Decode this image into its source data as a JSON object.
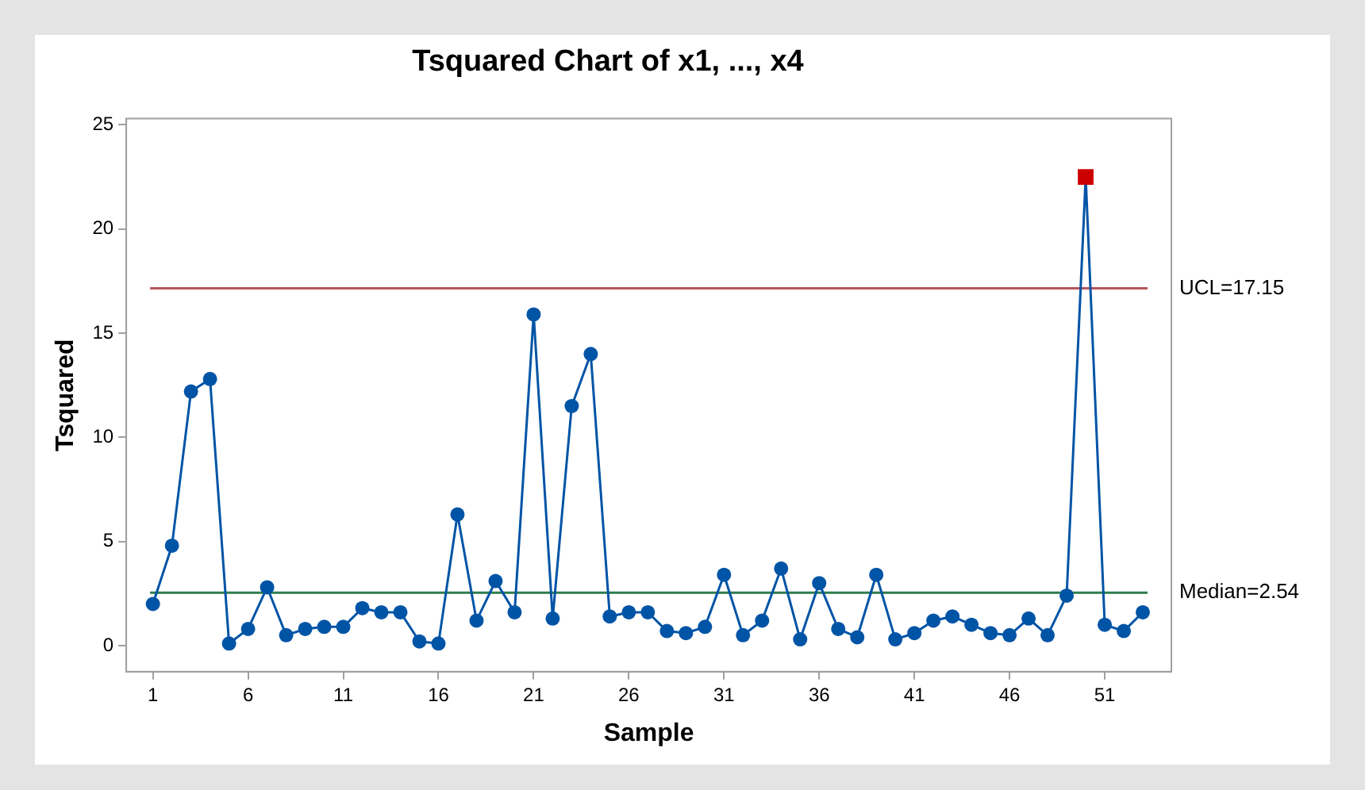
{
  "chart_data": {
    "type": "line",
    "title": "Tsquared Chart of x1, ..., x4",
    "xlabel": "Sample",
    "ylabel": "Tsquared",
    "x": [
      1,
      2,
      3,
      4,
      5,
      6,
      7,
      8,
      9,
      10,
      11,
      12,
      13,
      14,
      15,
      16,
      17,
      18,
      19,
      20,
      21,
      22,
      23,
      24,
      25,
      26,
      27,
      28,
      29,
      30,
      31,
      32,
      33,
      34,
      35,
      36,
      37,
      38,
      39,
      40,
      41,
      42,
      43,
      44,
      45,
      46,
      47,
      48,
      49,
      50,
      51,
      52,
      53
    ],
    "series": [
      {
        "color": "#0054a6",
        "marker": "circle",
        "values": [
          2.0,
          4.8,
          12.2,
          12.8,
          0.1,
          0.8,
          2.8,
          0.5,
          0.8,
          0.9,
          0.9,
          1.8,
          1.6,
          1.6,
          0.2,
          0.1,
          6.3,
          1.2,
          3.1,
          1.6,
          15.9,
          1.3,
          11.5,
          14.0,
          1.4,
          1.6,
          1.6,
          0.7,
          0.6,
          0.9,
          3.4,
          0.5,
          1.2,
          3.7,
          0.3,
          3.0,
          0.8,
          0.4,
          3.4,
          0.3,
          0.6,
          1.2,
          1.4,
          1.0,
          0.6,
          0.5,
          1.3,
          0.5,
          2.4,
          22.5,
          1.0,
          0.7,
          1.6
        ]
      },
      {
        "type": "scatter",
        "color": "#cc0000",
        "marker": "square",
        "x": [
          50
        ],
        "values": [
          22.5
        ]
      }
    ],
    "xlim": [
      -0.4,
      54.5
    ],
    "xticks": [
      1,
      6,
      11,
      16,
      21,
      26,
      31,
      36,
      41,
      46,
      51
    ],
    "ylim": [
      -1.25,
      25.3
    ],
    "yticks": [
      0,
      5,
      10,
      15,
      20,
      25
    ],
    "ref_lines": [
      {
        "axis": "y",
        "value": 17.15,
        "label": "UCL=17.15",
        "color": "#b5575c"
      },
      {
        "axis": "y",
        "value": 2.54,
        "label": "Median=2.54",
        "color": "#2e7d4f"
      }
    ],
    "grid": false,
    "legend": false,
    "line_style": "solid"
  }
}
